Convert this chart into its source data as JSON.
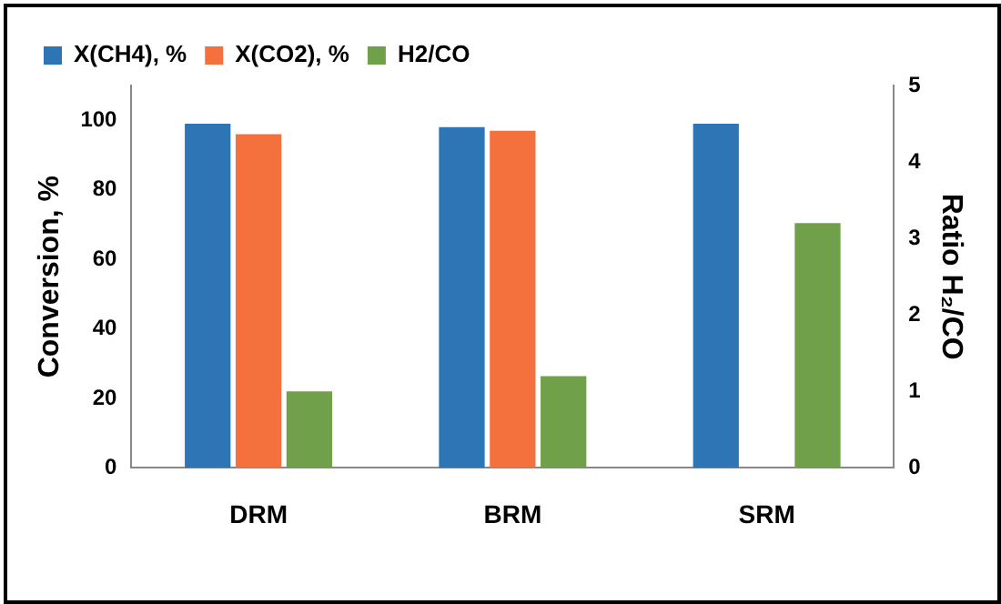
{
  "chart_data": {
    "type": "bar",
    "categories": [
      "DRM",
      "BRM",
      "SRM"
    ],
    "series": [
      {
        "name": "X(CH4), %",
        "color": "#2e75b6",
        "values": [
          99,
          98,
          99
        ]
      },
      {
        "name": "X(CO2), %",
        "color": "#f4703c",
        "values": [
          96,
          97,
          null
        ]
      },
      {
        "name": "H2/CO",
        "color": "#70a04a",
        "values": [
          1.0,
          1.2,
          3.2
        ],
        "axis": "y2"
      }
    ],
    "ylabel": "Conversion, %",
    "y2label": "Ratio H₂/CO",
    "ylim": [
      0,
      110
    ],
    "yticks": [
      0,
      20,
      40,
      60,
      80,
      100
    ],
    "y2lim": [
      0,
      5
    ],
    "y2ticks": [
      0,
      1,
      2,
      3,
      4,
      5
    ],
    "legend": "top left",
    "grid": false
  }
}
